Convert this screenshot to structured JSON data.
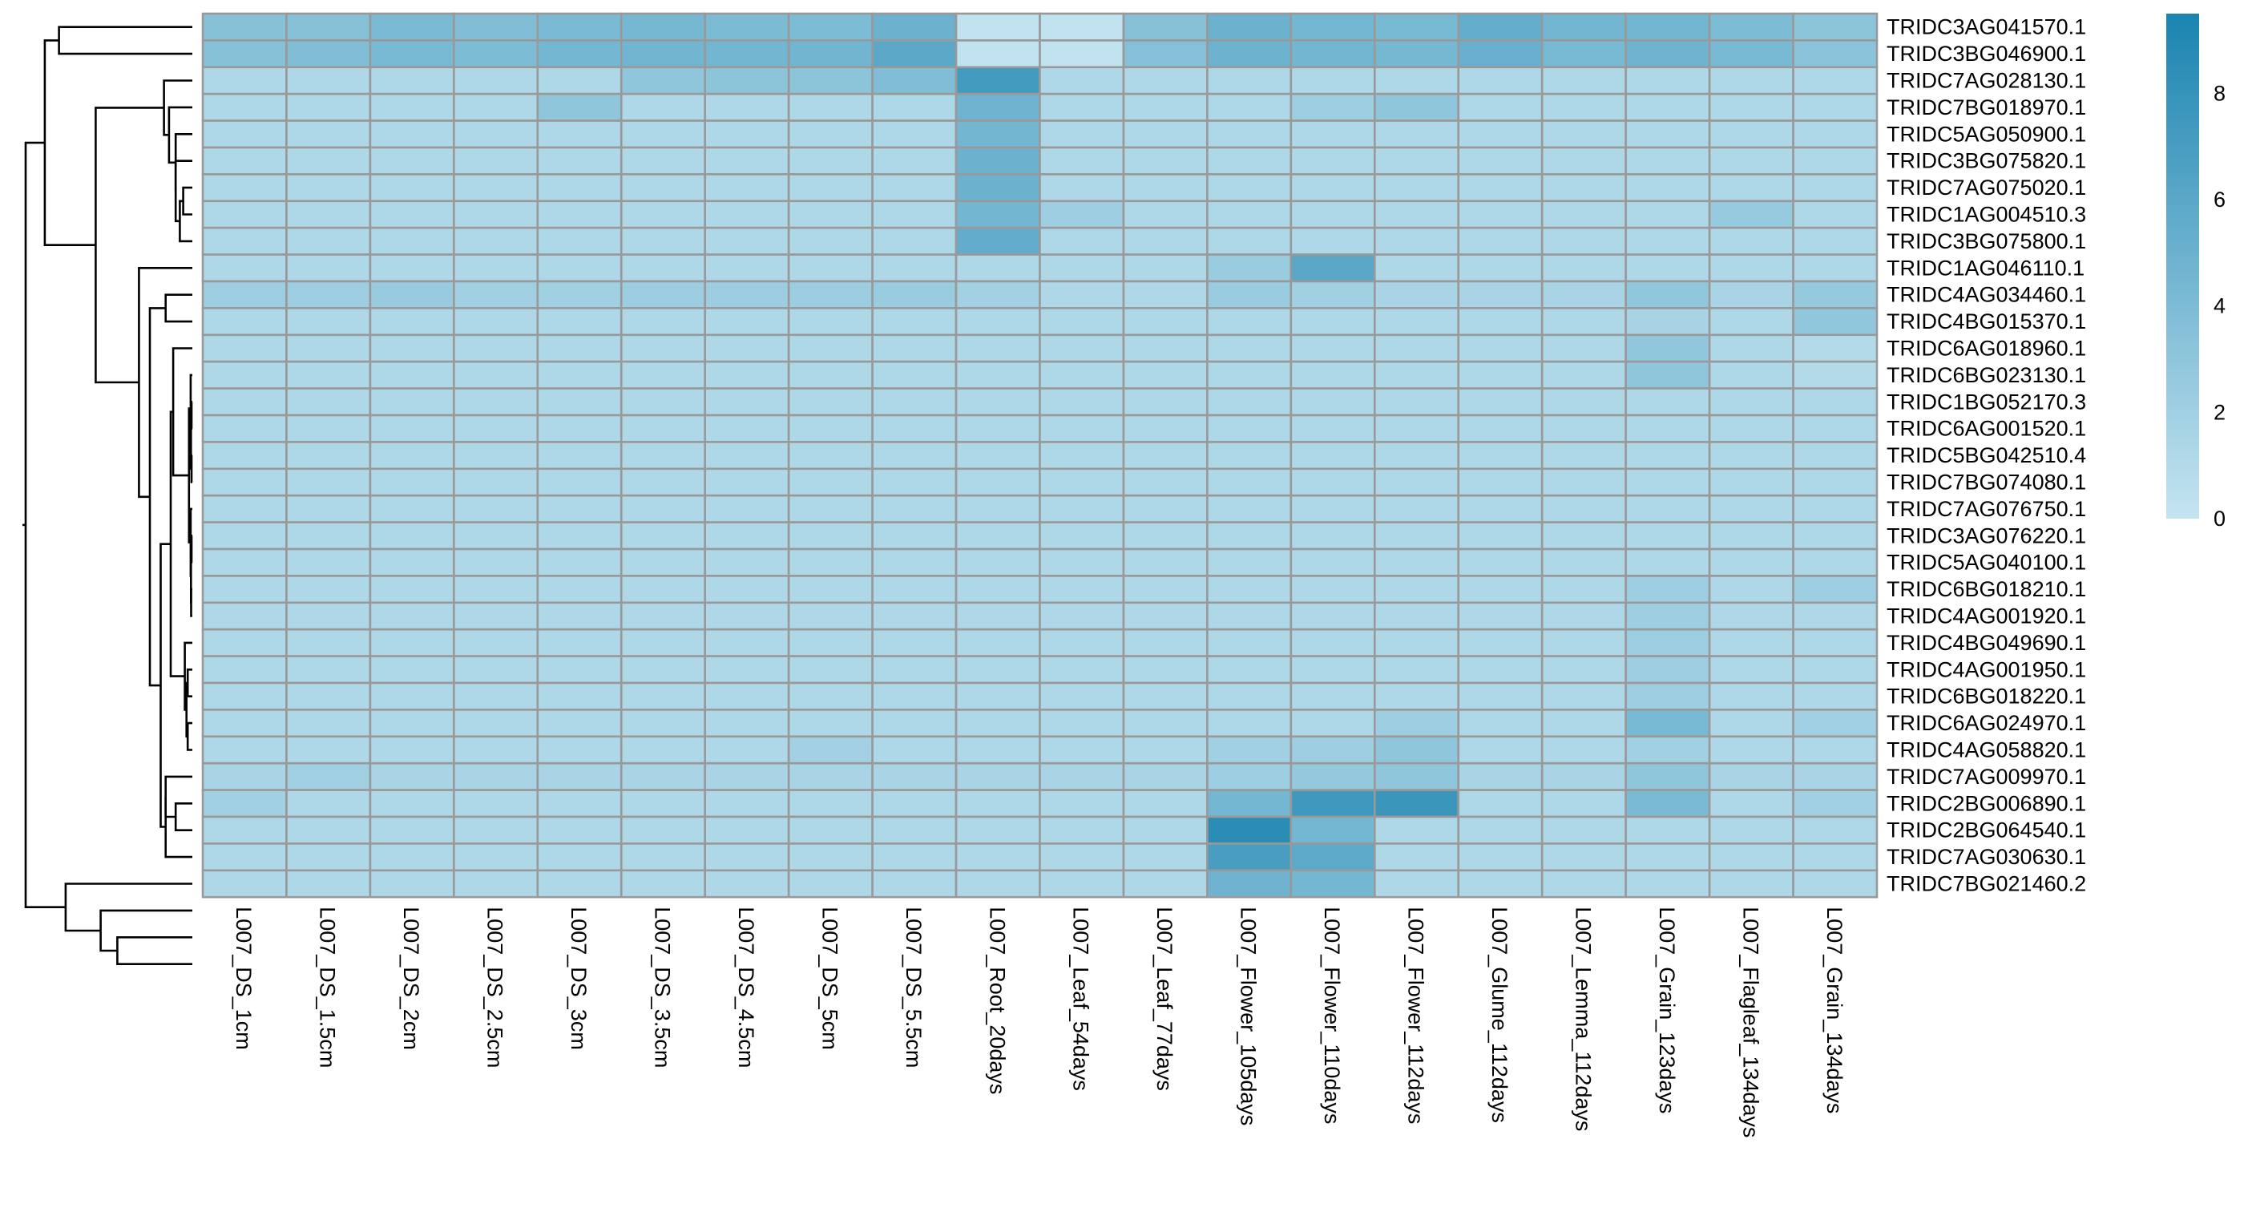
{
  "chart_data": {
    "type": "heatmap",
    "rows": [
      "TRIDC3AG041570.1",
      "TRIDC3BG046900.1",
      "TRIDC7AG028130.1",
      "TRIDC7BG018970.1",
      "TRIDC5AG050900.1",
      "TRIDC3BG075820.1",
      "TRIDC7AG075020.1",
      "TRIDC1AG004510.3",
      "TRIDC3BG075800.1",
      "TRIDC1AG046110.1",
      "TRIDC4AG034460.1",
      "TRIDC4BG015370.1",
      "TRIDC6AG018960.1",
      "TRIDC6BG023130.1",
      "TRIDC1BG052170.3",
      "TRIDC6AG001520.1",
      "TRIDC5BG042510.4",
      "TRIDC7BG074080.1",
      "TRIDC7AG076750.1",
      "TRIDC3AG076220.1",
      "TRIDC5AG040100.1",
      "TRIDC6BG018210.1",
      "TRIDC4AG001920.1",
      "TRIDC4BG049690.1",
      "TRIDC4AG001950.1",
      "TRIDC6BG018220.1",
      "TRIDC6AG024970.1",
      "TRIDC4AG058820.1",
      "TRIDC7AG009970.1",
      "TRIDC2BG006890.1",
      "TRIDC2BG064540.1",
      "TRIDC7AG030630.1",
      "TRIDC7BG021460.2"
    ],
    "columns": [
      "L007_DS_1cm",
      "L007_DS_1.5cm",
      "L007_DS_2cm",
      "L007_DS_2.5cm",
      "L007_DS_3cm",
      "L007_DS_3.5cm",
      "L007_DS_4.5cm",
      "L007_DS_5cm",
      "L007_DS_5.5cm",
      "L007_Root_20days",
      "L007_Leaf_54days",
      "L007_Leaf_77days",
      "L007_Flower_105days",
      "L007_Flower_110days",
      "L007_Flower_112days",
      "L007_Glume_112days",
      "L007_Lemma_112days",
      "L007_Grain_123days",
      "L007_Flagleaf_134days",
      "L007_Grain_134days"
    ],
    "values": [
      [
        3.5,
        3.5,
        4.2,
        3.8,
        4.2,
        4.4,
        4.1,
        4.0,
        5.0,
        0.2,
        0.2,
        3.5,
        5.0,
        4.5,
        4.3,
        5.4,
        4.6,
        4.6,
        4.0,
        3.2
      ],
      [
        3.5,
        3.8,
        4.3,
        4.0,
        4.5,
        4.7,
        4.6,
        4.7,
        5.9,
        0.2,
        0.2,
        3.6,
        4.9,
        4.6,
        4.4,
        5.1,
        4.3,
        4.8,
        4.3,
        3.3
      ],
      [
        1.3,
        1.3,
        1.3,
        1.3,
        1.3,
        3.0,
        3.2,
        3.2,
        3.8,
        7.3,
        1.3,
        1.3,
        1.3,
        1.3,
        1.3,
        1.3,
        1.3,
        1.3,
        1.3,
        1.3
      ],
      [
        1.3,
        1.3,
        1.3,
        1.3,
        3.0,
        1.3,
        1.3,
        1.3,
        1.3,
        4.8,
        1.3,
        1.3,
        1.3,
        2.2,
        3.0,
        1.3,
        1.3,
        1.3,
        1.3,
        1.3
      ],
      [
        1.3,
        1.3,
        1.3,
        1.3,
        1.3,
        1.3,
        1.3,
        1.3,
        1.3,
        4.6,
        1.3,
        1.3,
        1.3,
        1.3,
        1.3,
        1.3,
        1.3,
        1.3,
        1.3,
        1.3
      ],
      [
        1.3,
        1.3,
        1.3,
        1.3,
        1.3,
        1.3,
        1.3,
        1.3,
        1.3,
        5.0,
        1.3,
        1.3,
        1.3,
        1.3,
        1.3,
        1.3,
        1.3,
        1.3,
        1.3,
        1.3
      ],
      [
        1.3,
        1.3,
        1.3,
        1.3,
        1.3,
        1.3,
        1.3,
        1.3,
        1.3,
        5.0,
        1.3,
        1.3,
        1.3,
        1.3,
        1.3,
        1.3,
        1.3,
        1.3,
        1.3,
        1.3
      ],
      [
        1.3,
        1.3,
        1.3,
        1.3,
        1.3,
        1.3,
        1.3,
        1.3,
        1.3,
        4.6,
        2.2,
        1.3,
        1.3,
        1.3,
        1.3,
        1.3,
        1.3,
        1.3,
        2.6,
        1.3
      ],
      [
        1.3,
        1.3,
        1.3,
        1.3,
        1.3,
        1.3,
        1.3,
        1.3,
        1.3,
        5.5,
        1.3,
        1.3,
        1.3,
        1.3,
        1.3,
        1.3,
        1.3,
        1.3,
        1.3,
        1.3
      ],
      [
        1.3,
        1.3,
        1.3,
        1.3,
        1.3,
        1.3,
        1.3,
        1.3,
        1.3,
        1.3,
        1.3,
        1.3,
        2.4,
        6.0,
        1.3,
        1.3,
        1.3,
        1.3,
        1.3,
        1.3
      ],
      [
        2.2,
        2.2,
        2.5,
        2.0,
        2.0,
        2.3,
        2.3,
        2.3,
        2.4,
        1.9,
        1.3,
        1.3,
        2.4,
        2.0,
        1.6,
        1.6,
        1.6,
        2.9,
        1.6,
        2.7
      ],
      [
        1.3,
        1.3,
        1.3,
        1.3,
        1.3,
        1.3,
        1.3,
        1.3,
        1.3,
        1.3,
        1.3,
        1.3,
        1.3,
        1.3,
        1.3,
        1.3,
        1.3,
        1.7,
        1.3,
        2.9
      ],
      [
        1.3,
        1.3,
        1.3,
        1.3,
        1.3,
        1.3,
        1.3,
        1.3,
        1.3,
        1.3,
        1.3,
        1.3,
        1.3,
        1.3,
        1.3,
        1.3,
        1.3,
        2.9,
        1.3,
        1.0
      ],
      [
        1.3,
        1.3,
        1.3,
        1.3,
        1.3,
        1.3,
        1.3,
        1.3,
        1.3,
        1.3,
        1.3,
        1.3,
        1.3,
        1.3,
        1.3,
        1.3,
        1.3,
        3.0,
        1.3,
        1.0
      ],
      [
        1.3,
        1.3,
        1.3,
        1.3,
        1.3,
        1.3,
        1.3,
        1.3,
        1.3,
        1.3,
        1.3,
        1.3,
        1.3,
        1.3,
        1.3,
        1.3,
        1.3,
        1.3,
        1.3,
        1.3
      ],
      [
        1.3,
        1.3,
        1.3,
        1.3,
        1.3,
        1.3,
        1.3,
        1.3,
        1.3,
        1.3,
        1.3,
        1.3,
        1.3,
        1.3,
        1.3,
        1.3,
        1.3,
        1.3,
        1.3,
        1.3
      ],
      [
        1.3,
        1.3,
        1.3,
        1.3,
        1.3,
        1.3,
        1.3,
        1.3,
        1.3,
        1.3,
        1.3,
        1.3,
        1.3,
        1.3,
        1.3,
        1.3,
        1.3,
        1.3,
        1.3,
        1.3
      ],
      [
        1.3,
        1.3,
        1.3,
        1.3,
        1.3,
        1.3,
        1.3,
        1.3,
        1.3,
        1.3,
        1.3,
        1.3,
        1.3,
        1.3,
        1.3,
        1.3,
        1.3,
        1.3,
        1.3,
        1.3
      ],
      [
        1.3,
        1.3,
        1.3,
        1.3,
        1.3,
        1.3,
        1.3,
        1.3,
        1.3,
        1.3,
        1.3,
        1.3,
        1.3,
        1.3,
        1.3,
        1.3,
        1.3,
        1.3,
        1.3,
        1.3
      ],
      [
        1.3,
        1.3,
        1.3,
        1.3,
        1.3,
        1.3,
        1.3,
        1.3,
        1.3,
        1.3,
        1.3,
        1.3,
        1.3,
        1.3,
        1.3,
        1.3,
        1.3,
        1.3,
        1.3,
        1.3
      ],
      [
        1.3,
        1.3,
        1.3,
        1.3,
        1.3,
        1.3,
        1.3,
        1.3,
        1.3,
        1.3,
        1.3,
        1.3,
        1.3,
        1.3,
        1.3,
        1.3,
        1.3,
        1.3,
        1.3,
        1.3
      ],
      [
        1.3,
        1.3,
        1.3,
        1.3,
        1.3,
        1.3,
        1.3,
        1.3,
        1.3,
        1.3,
        1.3,
        1.3,
        1.3,
        1.3,
        1.3,
        1.3,
        1.3,
        2.2,
        1.3,
        2.2
      ],
      [
        1.3,
        1.3,
        1.3,
        1.3,
        1.3,
        1.3,
        1.3,
        1.3,
        1.3,
        1.3,
        1.3,
        1.3,
        1.3,
        1.3,
        1.3,
        1.3,
        1.3,
        2.2,
        1.3,
        1.3
      ],
      [
        1.3,
        1.3,
        1.3,
        1.3,
        1.3,
        1.3,
        1.3,
        1.3,
        1.3,
        1.3,
        1.3,
        1.3,
        1.3,
        1.3,
        1.3,
        1.3,
        1.3,
        2.2,
        1.3,
        1.3
      ],
      [
        1.3,
        1.3,
        1.3,
        1.3,
        1.3,
        1.3,
        1.3,
        1.3,
        1.3,
        1.3,
        1.3,
        1.3,
        1.3,
        1.3,
        1.3,
        1.3,
        1.3,
        2.2,
        1.3,
        1.3
      ],
      [
        1.3,
        1.3,
        1.3,
        1.3,
        1.3,
        1.3,
        1.3,
        1.3,
        1.3,
        1.3,
        1.3,
        1.3,
        1.3,
        1.3,
        1.3,
        1.3,
        1.3,
        2.2,
        1.3,
        1.3
      ],
      [
        1.3,
        1.3,
        1.3,
        1.3,
        1.3,
        1.3,
        1.3,
        1.3,
        1.3,
        1.3,
        1.3,
        1.3,
        1.3,
        1.3,
        2.2,
        1.3,
        1.3,
        4.3,
        1.3,
        2.0
      ],
      [
        1.3,
        1.3,
        1.3,
        1.3,
        1.3,
        1.3,
        1.3,
        1.9,
        1.3,
        1.3,
        1.3,
        1.3,
        2.0,
        2.2,
        3.0,
        1.3,
        1.3,
        2.0,
        1.3,
        1.3
      ],
      [
        1.6,
        2.0,
        1.6,
        1.6,
        1.6,
        1.6,
        1.6,
        1.6,
        1.6,
        1.6,
        1.6,
        1.6,
        2.2,
        2.8,
        3.0,
        1.6,
        1.6,
        3.0,
        1.6,
        1.6
      ],
      [
        2.0,
        1.3,
        1.3,
        1.3,
        1.3,
        1.3,
        1.3,
        1.3,
        1.3,
        1.3,
        1.3,
        1.3,
        4.5,
        7.5,
        7.7,
        1.3,
        1.3,
        4.2,
        1.3,
        2.0
      ],
      [
        1.3,
        1.3,
        1.3,
        1.3,
        1.3,
        1.3,
        1.3,
        1.3,
        1.3,
        1.3,
        1.3,
        1.3,
        8.6,
        4.5,
        1.3,
        1.3,
        1.3,
        1.3,
        1.3,
        1.3
      ],
      [
        1.3,
        1.3,
        1.3,
        1.3,
        1.3,
        1.3,
        1.3,
        1.3,
        1.3,
        1.3,
        1.3,
        1.3,
        7.0,
        5.8,
        1.3,
        1.3,
        1.3,
        1.3,
        1.3,
        1.3
      ],
      [
        1.3,
        1.3,
        1.3,
        1.3,
        1.3,
        1.3,
        1.3,
        1.3,
        1.3,
        1.3,
        1.3,
        1.3,
        4.8,
        4.5,
        1.3,
        1.3,
        1.3,
        1.3,
        1.3,
        1.3
      ]
    ],
    "color_scale": {
      "min": 0,
      "max": 9.5,
      "low": "#c5e4f0",
      "high": "#1b84b0"
    },
    "legend": {
      "ticks": [
        0,
        2,
        4,
        6,
        8
      ],
      "placement": "right"
    },
    "cell_border": "#999999",
    "row_dendrogram": true,
    "title": "",
    "xlabel": "",
    "ylabel": ""
  }
}
